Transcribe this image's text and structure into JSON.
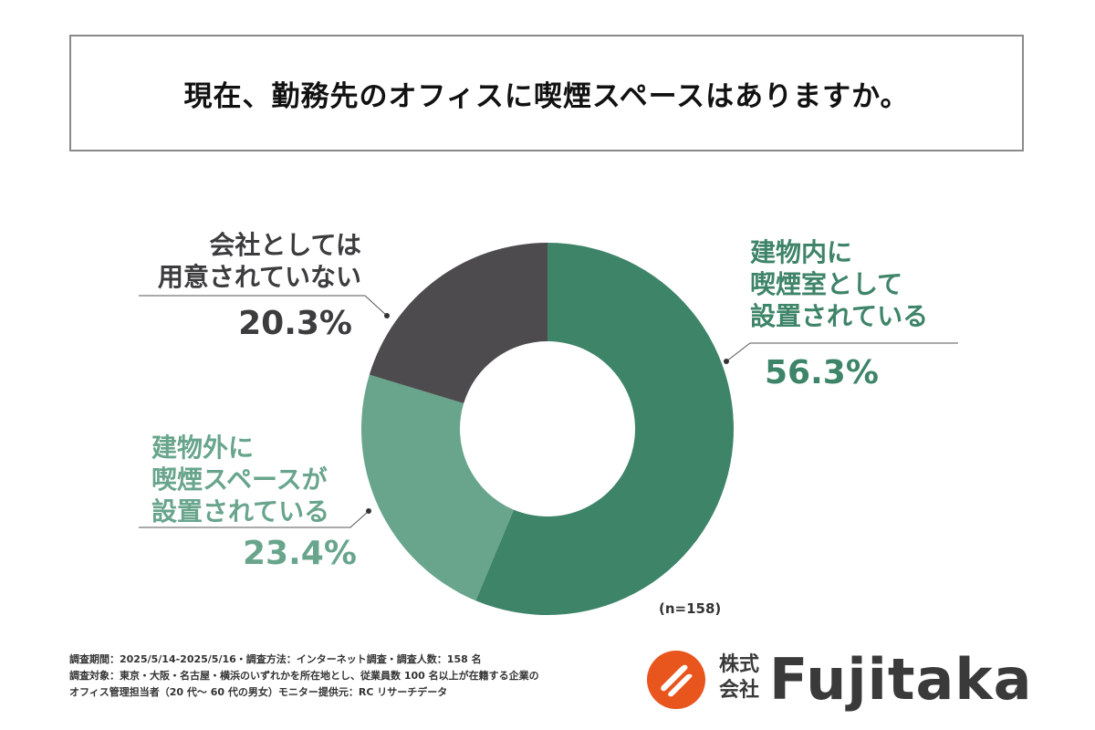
{
  "title": "現在、勤務先のオフィスに喫煙スペースはありますか。",
  "colors": {
    "segment_1": "#3e8468",
    "segment_2": "#68a58c",
    "segment_3": "#4d4b4e",
    "label_green": "#3e8468",
    "label_gray": "#3c3c3e"
  },
  "chart_data": {
    "type": "pie",
    "title": "現在、勤務先のオフィスに喫煙スペースはありますか。",
    "sample_size": "(n=158)",
    "slices": [
      {
        "label_lines": [
          "建物内に",
          "喫煙室として",
          "設置されている"
        ],
        "value": 56.3,
        "value_text": "56.3%"
      },
      {
        "label_lines": [
          "建物外に",
          "喫煙スペースが",
          "設置されている"
        ],
        "value": 23.4,
        "value_text": "23.4%"
      },
      {
        "label_lines": [
          "会社としては",
          "用意されていない"
        ],
        "value": 20.3,
        "value_text": "20.3%"
      }
    ]
  },
  "footnote": {
    "line1": "調査期間：2025/5/14-2025/5/16・調査方法：インターネット調査・調査人数：158 名",
    "line2": "調査対象：東京・大阪・名古屋・横浜のいずれかを所在地とし、従業員数 100 名以上が在籍する企業の",
    "line3": "オフィス管理担当者（20 代～ 60 代の男女）モニター提供元：RC リサーチデータ"
  },
  "brand": {
    "kanji_line1": "株式",
    "kanji_line2": "会社",
    "wordmark": "Fujitaka",
    "registered": "®"
  }
}
